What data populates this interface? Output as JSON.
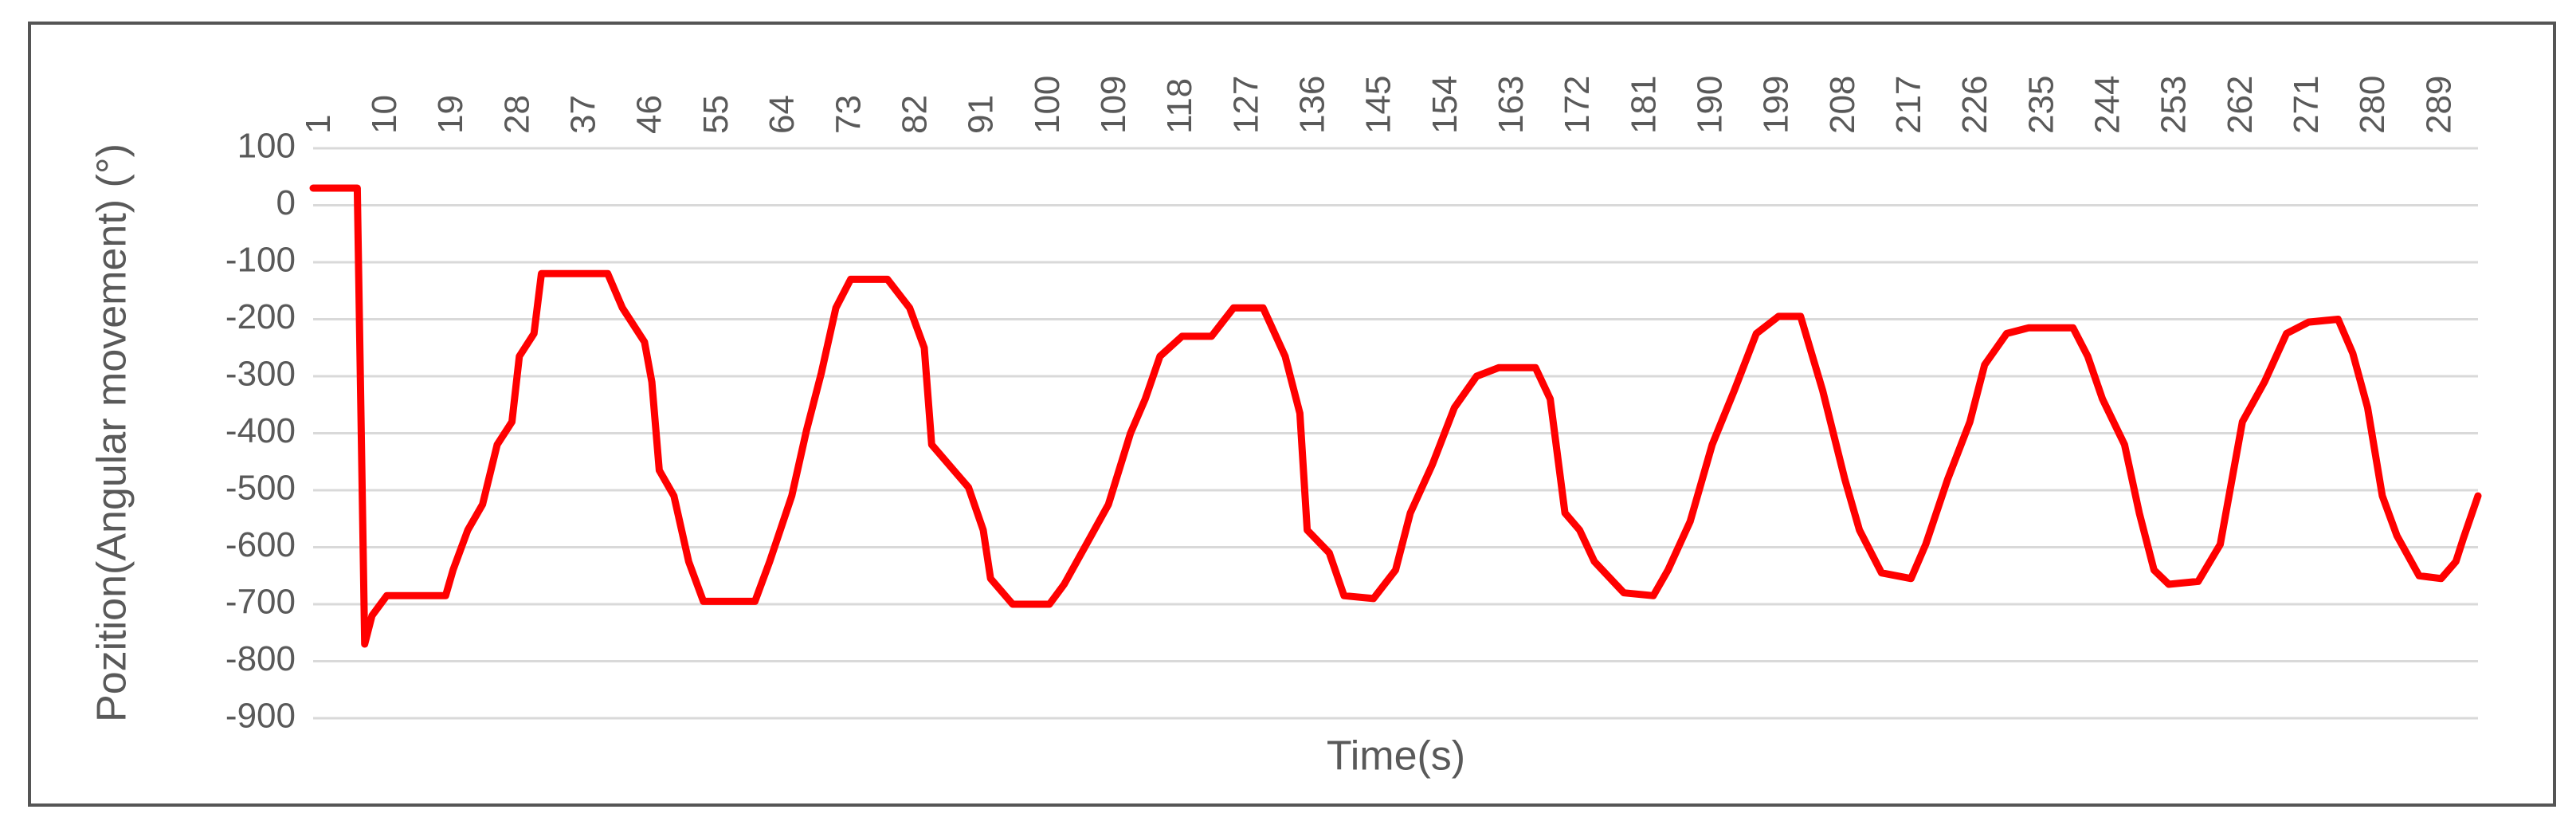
{
  "chart_data": {
    "type": "line",
    "x_label": "Time(s)",
    "y_label": "Pozition(Angular movement) (°)",
    "x": [
      0,
      6,
      7,
      8,
      10,
      18,
      19,
      21,
      23,
      25,
      27,
      28,
      30,
      31,
      40,
      42,
      45,
      46,
      47,
      49,
      51,
      53,
      60,
      62,
      65,
      67,
      69,
      71,
      73,
      78,
      81,
      83,
      84,
      87,
      89,
      91,
      92,
      95,
      100,
      102,
      105,
      108,
      111,
      113,
      115,
      118,
      122,
      125,
      129,
      132,
      134,
      135,
      138,
      140,
      144,
      147,
      149,
      152,
      155,
      158,
      161,
      166,
      168,
      170,
      172,
      174,
      178,
      182,
      184,
      187,
      190,
      193,
      196,
      199,
      202,
      205,
      208,
      210,
      213,
      217,
      219,
      222,
      225,
      227,
      230,
      233,
      239,
      241,
      243,
      246,
      248,
      250,
      252,
      256,
      259,
      262,
      265,
      268,
      271,
      275,
      277,
      279,
      281,
      283,
      286,
      289,
      291,
      292,
      294
    ],
    "series": [
      {
        "color": "#ff0000",
        "values": [
          30,
          30,
          -770,
          -720,
          -685,
          -685,
          -640,
          -570,
          -525,
          -420,
          -380,
          -265,
          -225,
          -120,
          -120,
          -180,
          -240,
          -310,
          -465,
          -510,
          -625,
          -695,
          -695,
          -625,
          -510,
          -395,
          -295,
          -180,
          -130,
          -130,
          -180,
          -250,
          -420,
          -465,
          -495,
          -570,
          -655,
          -700,
          -700,
          -665,
          -595,
          -525,
          -400,
          -340,
          -265,
          -230,
          -230,
          -180,
          -180,
          -265,
          -365,
          -570,
          -610,
          -685,
          -690,
          -640,
          -540,
          -455,
          -355,
          -300,
          -285,
          -285,
          -340,
          -540,
          -570,
          -625,
          -680,
          -685,
          -640,
          -555,
          -420,
          -325,
          -225,
          -195,
          -195,
          -325,
          -480,
          -570,
          -645,
          -655,
          -595,
          -480,
          -380,
          -280,
          -225,
          -215,
          -215,
          -265,
          -340,
          -420,
          -540,
          -640,
          -665,
          -660,
          -595,
          -380,
          -310,
          -225,
          -205,
          -200,
          -260,
          -355,
          -510,
          -580,
          -650,
          -655,
          -625,
          -585,
          -510
        ]
      }
    ],
    "xlim": [
      0,
      294
    ],
    "xticks": [
      1,
      10,
      19,
      28,
      37,
      46,
      55,
      64,
      73,
      82,
      91,
      100,
      109,
      118,
      127,
      136,
      145,
      154,
      163,
      172,
      181,
      190,
      199,
      208,
      217,
      226,
      235,
      244,
      253,
      262,
      271,
      280,
      289
    ],
    "ylim": [
      -900,
      100
    ],
    "yticks": [
      100,
      0,
      -100,
      -200,
      -300,
      -400,
      -500,
      -600,
      -700,
      -800,
      -900
    ],
    "grid": true
  }
}
